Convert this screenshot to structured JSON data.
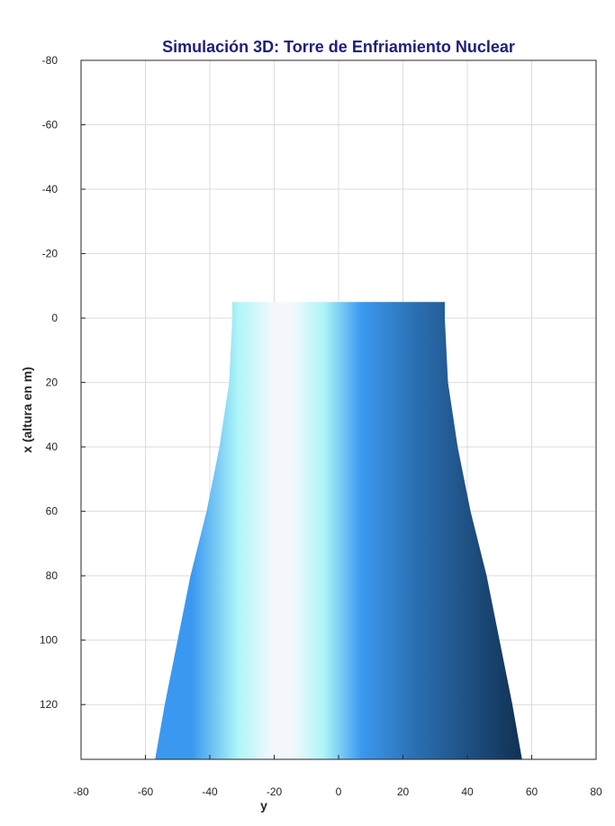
{
  "chart_data": {
    "type": "surface",
    "title": "Simulación 3D: Torre de Enfriamiento Nuclear",
    "xlabel": "y",
    "ylabel": "x (altura en m)",
    "xlim": [
      -80,
      80
    ],
    "ylim": [
      -80,
      137
    ],
    "y_reversed": true,
    "xticks": [
      -80,
      -60,
      -40,
      -20,
      0,
      20,
      40,
      60,
      80
    ],
    "yticks": [
      -80,
      -60,
      -40,
      -20,
      0,
      20,
      40,
      60,
      80,
      100,
      120
    ],
    "grid": true,
    "surface": {
      "name": "torre",
      "x_top": -5,
      "x_bottom": 137,
      "profile_x": [
        -5,
        0,
        20,
        40,
        60,
        80,
        100,
        120,
        137
      ],
      "profile_halfwidth": [
        33,
        33,
        34,
        37,
        41,
        46,
        50,
        54,
        57
      ],
      "center_y": 0
    },
    "colormap": [
      "#f4f8fc",
      "#aef6f8",
      "#3b98f0",
      "#2a6fb2",
      "#0f2b4a"
    ]
  }
}
